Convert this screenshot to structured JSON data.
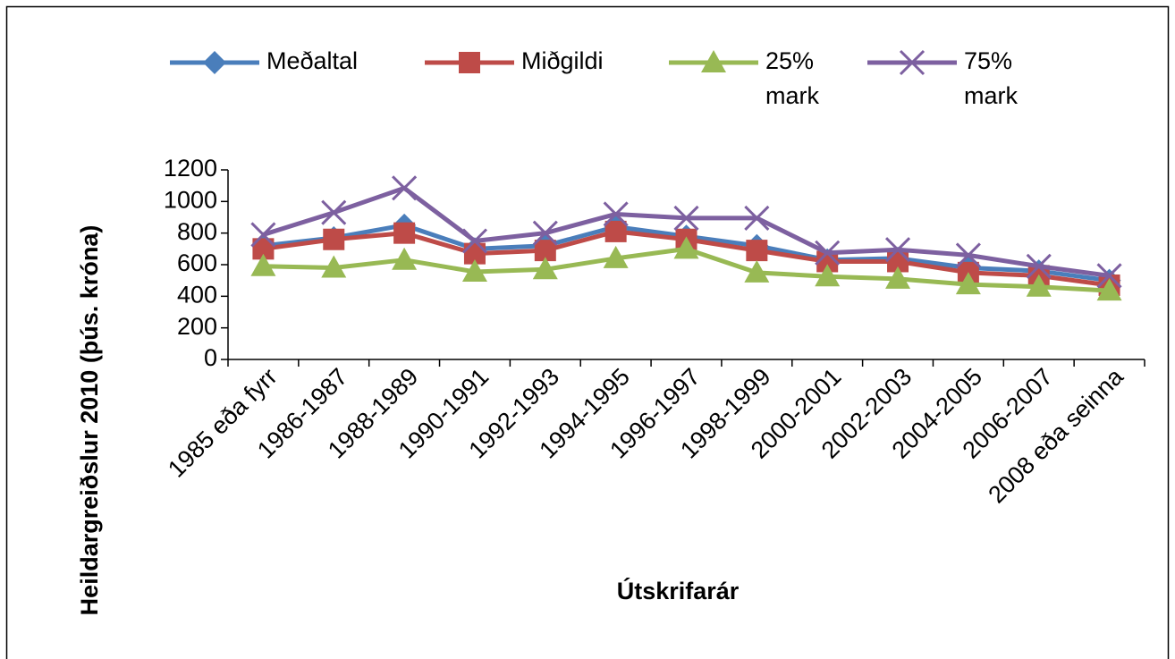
{
  "chart_data": {
    "type": "line",
    "x_label": "Útskrifarár",
    "y_label": "Heildargreiðslur 2010 (þús. króna)",
    "categories": [
      "1985 eða fyrr",
      "1986-1987",
      "1988-1989",
      "1990-1991",
      "1992-1993",
      "1994-1995",
      "1996-1997",
      "1998-1999",
      "2000-2001",
      "2002-2003",
      "2004-2005",
      "2006-2007",
      "2008 eða seinna"
    ],
    "series": [
      {
        "name": "Meðaltal",
        "color": "#4a7ebb",
        "marker": "diamond",
        "values": [
          720,
          770,
          850,
          700,
          720,
          840,
          780,
          720,
          630,
          640,
          580,
          560,
          500
        ]
      },
      {
        "name": "Miðgildi",
        "color": "#be4b48",
        "marker": "square",
        "values": [
          700,
          760,
          800,
          670,
          690,
          810,
          760,
          690,
          620,
          620,
          550,
          530,
          470
        ]
      },
      {
        "name": "25% mark",
        "color": "#98b954",
        "marker": "triangle",
        "values": [
          590,
          580,
          630,
          555,
          570,
          640,
          700,
          550,
          525,
          510,
          475,
          460,
          435
        ]
      },
      {
        "name": "75% mark",
        "color": "#7d60a0",
        "marker": "x",
        "values": [
          790,
          930,
          1085,
          750,
          800,
          920,
          895,
          895,
          675,
          695,
          660,
          590,
          530
        ]
      }
    ],
    "ylim": [
      0,
      1200
    ],
    "yticks": [
      0,
      200,
      400,
      600,
      800,
      1000,
      1200
    ],
    "legend": "top"
  }
}
